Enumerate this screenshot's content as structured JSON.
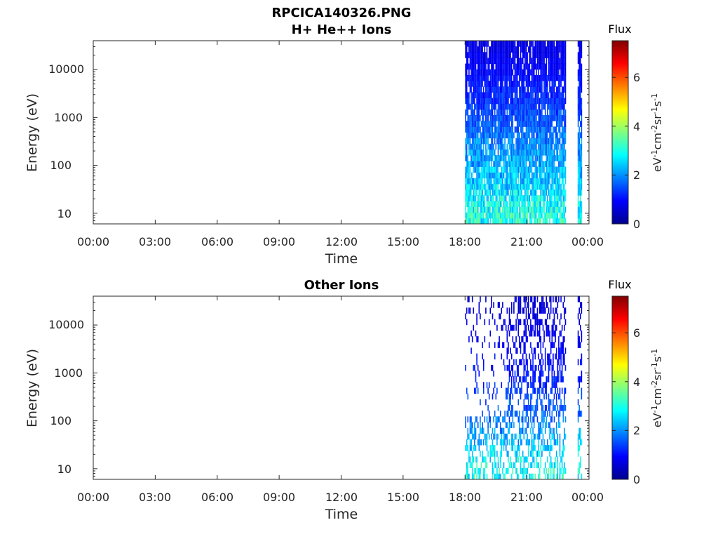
{
  "figure_title": "RPCICA140326.PNG",
  "colors": {
    "axis": "#262626",
    "colormap": [
      "#00008f",
      "#0000ff",
      "#0080ff",
      "#00ffff",
      "#80ff80",
      "#ffff00",
      "#ff8000",
      "#ff0000",
      "#800000"
    ]
  },
  "chart_data": [
    {
      "type": "heatmap",
      "title": "H+ He++ Ions",
      "xlabel": "Time",
      "ylabel": "Energy (eV)",
      "x_ticks": [
        "00:00",
        "03:00",
        "06:00",
        "09:00",
        "12:00",
        "15:00",
        "18:00",
        "21:00",
        "00:00"
      ],
      "xlim_hours": [
        0,
        24
      ],
      "y_scale": "log",
      "y_ticks": [
        "10",
        "100",
        "1000",
        "10000"
      ],
      "ylim": [
        6,
        40000
      ],
      "colorbar": {
        "label": "Flux",
        "units": "eV-1cm-2sr-1s-1",
        "ticks": [
          "0",
          "2",
          "4",
          "6"
        ],
        "range": [
          0,
          7.5
        ]
      },
      "data_intervals_hours": [
        [
          18.0,
          22.85
        ],
        [
          23.45,
          23.65
        ]
      ],
      "flux_profile": [
        {
          "energy_eV": 10,
          "flux": 3.0
        },
        {
          "energy_eV": 30,
          "flux": 2.6
        },
        {
          "energy_eV": 100,
          "flux": 2.2
        },
        {
          "energy_eV": 300,
          "flux": 1.9
        },
        {
          "energy_eV": 1000,
          "flux": 1.5
        },
        {
          "energy_eV": 3000,
          "flux": 1.2
        },
        {
          "energy_eV": 10000,
          "flux": 0.9
        },
        {
          "energy_eV": 30000,
          "flux": 0.7
        }
      ]
    },
    {
      "type": "heatmap",
      "title": "Other Ions",
      "xlabel": "Time",
      "ylabel": "Energy (eV)",
      "x_ticks": [
        "00:00",
        "03:00",
        "06:00",
        "09:00",
        "12:00",
        "15:00",
        "18:00",
        "21:00",
        "00:00"
      ],
      "xlim_hours": [
        0,
        24
      ],
      "y_scale": "log",
      "y_ticks": [
        "10",
        "100",
        "1000",
        "10000"
      ],
      "ylim": [
        6,
        40000
      ],
      "colorbar": {
        "label": "Flux",
        "units": "eV-1cm-2sr-1s-1",
        "ticks": [
          "0",
          "2",
          "4",
          "6"
        ],
        "range": [
          0,
          7.5
        ]
      },
      "data_intervals_hours": [
        [
          18.0,
          22.85
        ],
        [
          23.45,
          23.65
        ]
      ],
      "flux_profile": [
        {
          "energy_eV": 10,
          "flux": 2.9
        },
        {
          "energy_eV": 30,
          "flux": 2.4
        },
        {
          "energy_eV": 100,
          "flux": 1.8
        },
        {
          "energy_eV": 300,
          "flux": 1.4
        },
        {
          "energy_eV": 1000,
          "flux": 1.1
        },
        {
          "energy_eV": 3000,
          "flux": 0.9
        },
        {
          "energy_eV": 10000,
          "flux": 0.7
        },
        {
          "energy_eV": 30000,
          "flux": 0.6
        }
      ]
    }
  ]
}
